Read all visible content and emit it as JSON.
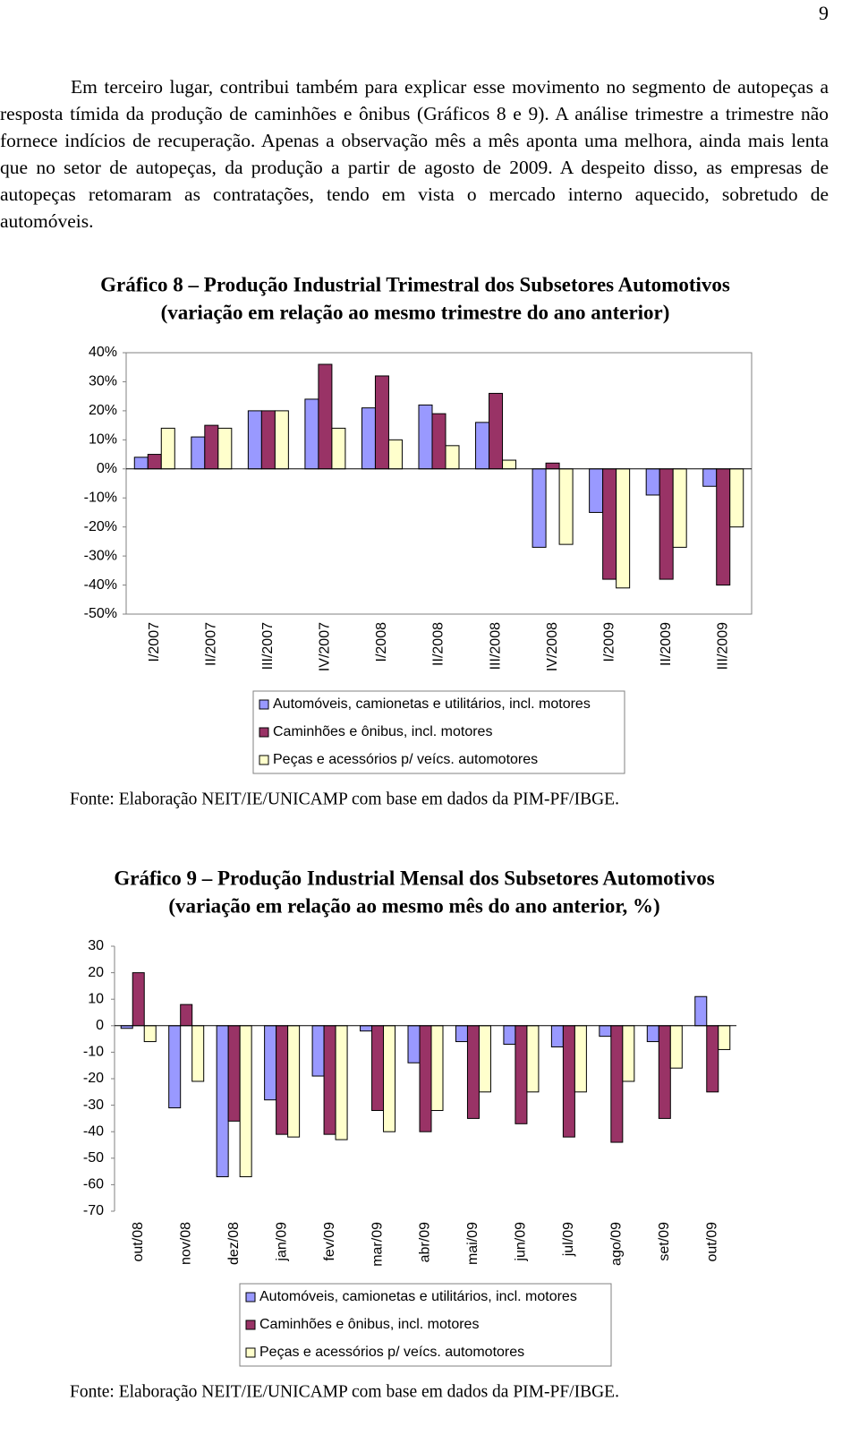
{
  "page_number": "9",
  "paragraph": "Em terceiro lugar, contribui também para explicar esse movimento no segmento de autopeças a resposta tímida da produção de caminhões e ônibus (Gráficos 8 e 9). A análise trimestre a trimestre não fornece indícios de recuperação. Apenas a observação mês a mês aponta uma melhora, ainda mais lenta que no setor de autopeças, da produção a partir de agosto de 2009. A despeito disso, as empresas de autopeças retomaram as contratações, tendo em vista o mercado interno aquecido, sobretudo de automóveis.",
  "chart_data": [
    {
      "type": "bar",
      "title": "Gráfico 8 – Produção Industrial Trimestral dos Subsetores Automotivos",
      "subtitle": "(variação em relação ao mesmo trimestre do ano anterior)",
      "categories": [
        "I/2007",
        "II/2007",
        "III/2007",
        "IV/2007",
        "I/2008",
        "II/2008",
        "III/2008",
        "IV/2008",
        "I/2009",
        "II/2009",
        "III/2009"
      ],
      "series": [
        {
          "name": "Automóveis, camionetas e utilitários, incl. motores",
          "color": "#9999ff",
          "values": [
            4,
            11,
            20,
            24,
            21,
            22,
            16,
            -27,
            -15,
            -9,
            -6
          ]
        },
        {
          "name": "Caminhões e ônibus, incl. motores",
          "color": "#993366",
          "values": [
            5,
            15,
            20,
            36,
            32,
            19,
            26,
            2,
            -38,
            -38,
            -40
          ]
        },
        {
          "name": "Peças e acessórios p/ veícs. automotores",
          "color": "#ffffcc",
          "values": [
            14,
            14,
            20,
            14,
            10,
            8,
            3,
            -26,
            -41,
            -27,
            -20
          ]
        }
      ],
      "ylim": [
        -50,
        40
      ],
      "yticks": [
        {
          "value": 40,
          "label": "40%"
        },
        {
          "value": 30,
          "label": "30%"
        },
        {
          "value": 20,
          "label": "20%"
        },
        {
          "value": 10,
          "label": "10%"
        },
        {
          "value": 0,
          "label": "0%"
        },
        {
          "value": -10,
          "label": "-10%"
        },
        {
          "value": -20,
          "label": "-20%"
        },
        {
          "value": -30,
          "label": "-30%"
        },
        {
          "value": -40,
          "label": "-40%"
        },
        {
          "value": -50,
          "label": "-50%"
        }
      ],
      "grid": false,
      "source": "Fonte: Elaboração NEIT/IE/UNICAMP com base em dados da PIM-PF/IBGE."
    },
    {
      "type": "bar",
      "title": "Gráfico 9 – Produção Industrial Mensal dos Subsetores Automotivos",
      "subtitle": "(variação em relação ao mesmo mês do ano anterior, %)",
      "categories": [
        "out/08",
        "nov/08",
        "dez/08",
        "jan/09",
        "fev/09",
        "mar/09",
        "abr/09",
        "mai/09",
        "jun/09",
        "jul/09",
        "ago/09",
        "set/09",
        "out/09"
      ],
      "series": [
        {
          "name": "Automóveis, camionetas e utilitários, incl. motores",
          "color": "#9999ff",
          "values": [
            -1,
            -31,
            -57,
            -28,
            -19,
            -2,
            -14,
            -6,
            -7,
            -8,
            -4,
            -6,
            11
          ]
        },
        {
          "name": "Caminhões e ônibus, incl. motores",
          "color": "#993366",
          "values": [
            20,
            8,
            -36,
            -41,
            -41,
            -32,
            -40,
            -35,
            -37,
            -42,
            -44,
            -35,
            -25
          ]
        },
        {
          "name": "Peças e acessórios p/ veícs. automotores",
          "color": "#ffffcc",
          "values": [
            -6,
            -21,
            -57,
            -42,
            -43,
            -40,
            -32,
            -25,
            -25,
            -25,
            -21,
            -16,
            -9
          ]
        }
      ],
      "ylim": [
        -70,
        30
      ],
      "yticks": [
        30,
        20,
        10,
        0,
        -10,
        -20,
        -30,
        -40,
        -50,
        -60,
        -70
      ],
      "grid": false,
      "source": "Fonte: Elaboração NEIT/IE/UNICAMP com base em dados da PIM-PF/IBGE."
    }
  ]
}
